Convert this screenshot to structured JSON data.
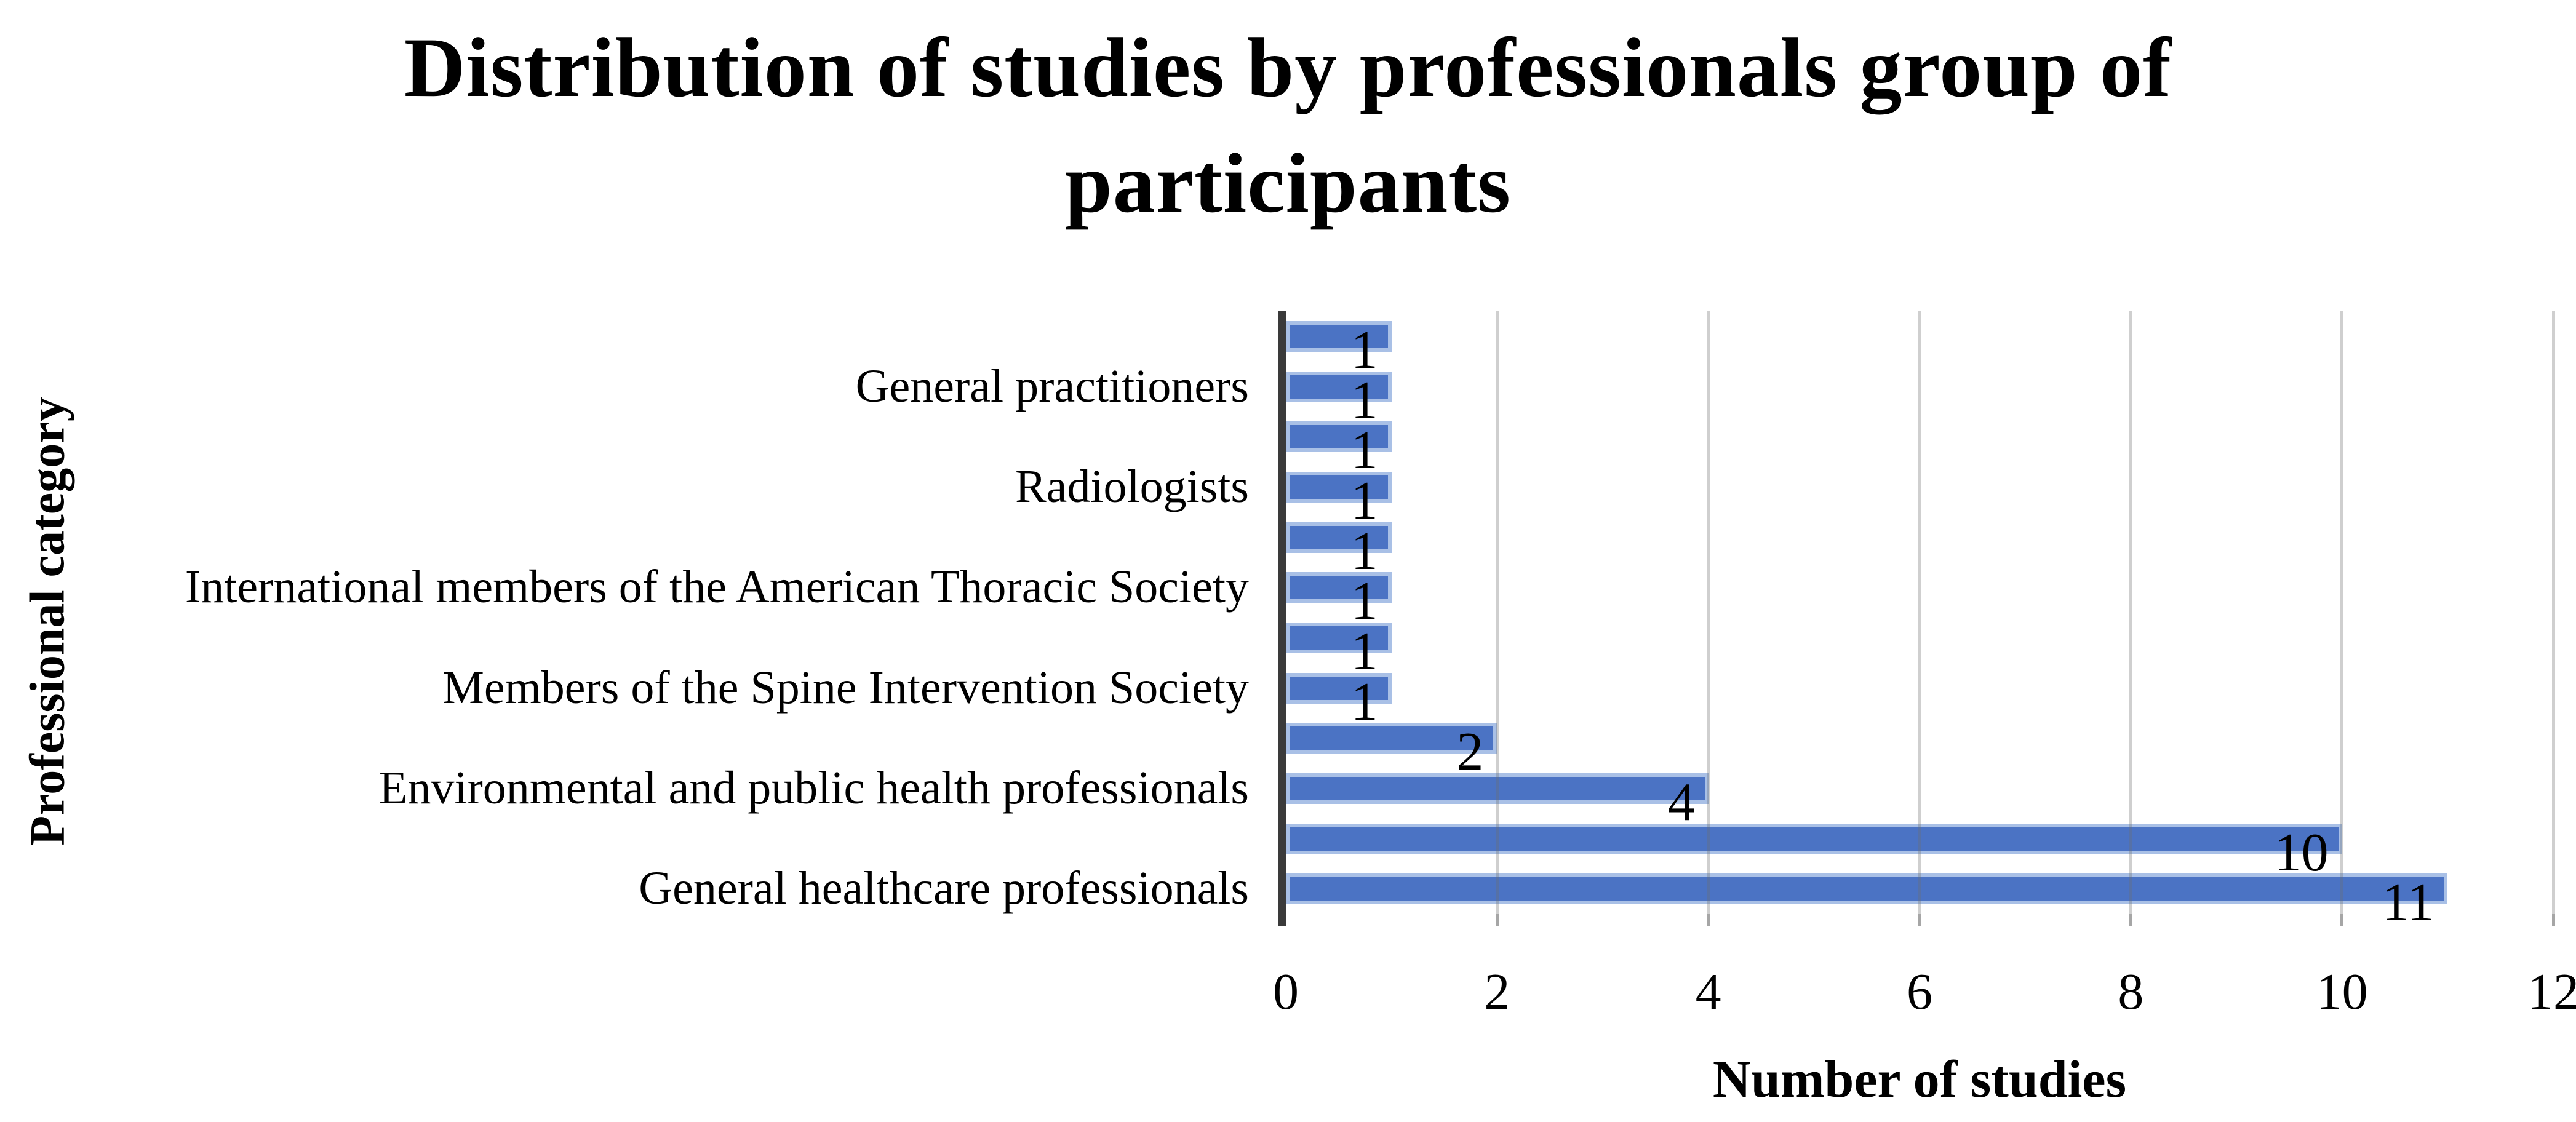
{
  "chart_data": {
    "type": "bar",
    "orientation": "horizontal",
    "title": "Distribution of studies by professionals group of participants",
    "title_lines": [
      "Distribution of studies by professionals group of",
      "participants"
    ],
    "xlabel": "Number of studies",
    "ylabel": "Professional category",
    "categories": [
      "",
      "General practitioners",
      "",
      "Radiologists",
      "",
      "International members of the American Thoracic Society",
      "",
      "Members of the Spine Intervention Society",
      "",
      "Environmental and public health professionals",
      "",
      "General healthcare professionals"
    ],
    "values": [
      1,
      1,
      1,
      1,
      1,
      1,
      1,
      1,
      2,
      4,
      10,
      11
    ],
    "data_labels": [
      "1",
      "1",
      "1",
      "1",
      "1",
      "1",
      "1",
      "1",
      "2",
      "4",
      "10",
      "11"
    ],
    "xlim": [
      0,
      12
    ],
    "xticks": [
      0,
      2,
      4,
      6,
      8,
      10,
      12
    ],
    "gridlines": "vertical",
    "legend": "none",
    "colors": {
      "bar_fill": "#4B73C4",
      "bar_border": "#A9C0E6",
      "gridline": "#D9D9D9",
      "category_axis_line": "#3A3A3A",
      "tick_mark": "#A6A6A6",
      "text": "#000000",
      "background": "#FFFFFF"
    }
  }
}
